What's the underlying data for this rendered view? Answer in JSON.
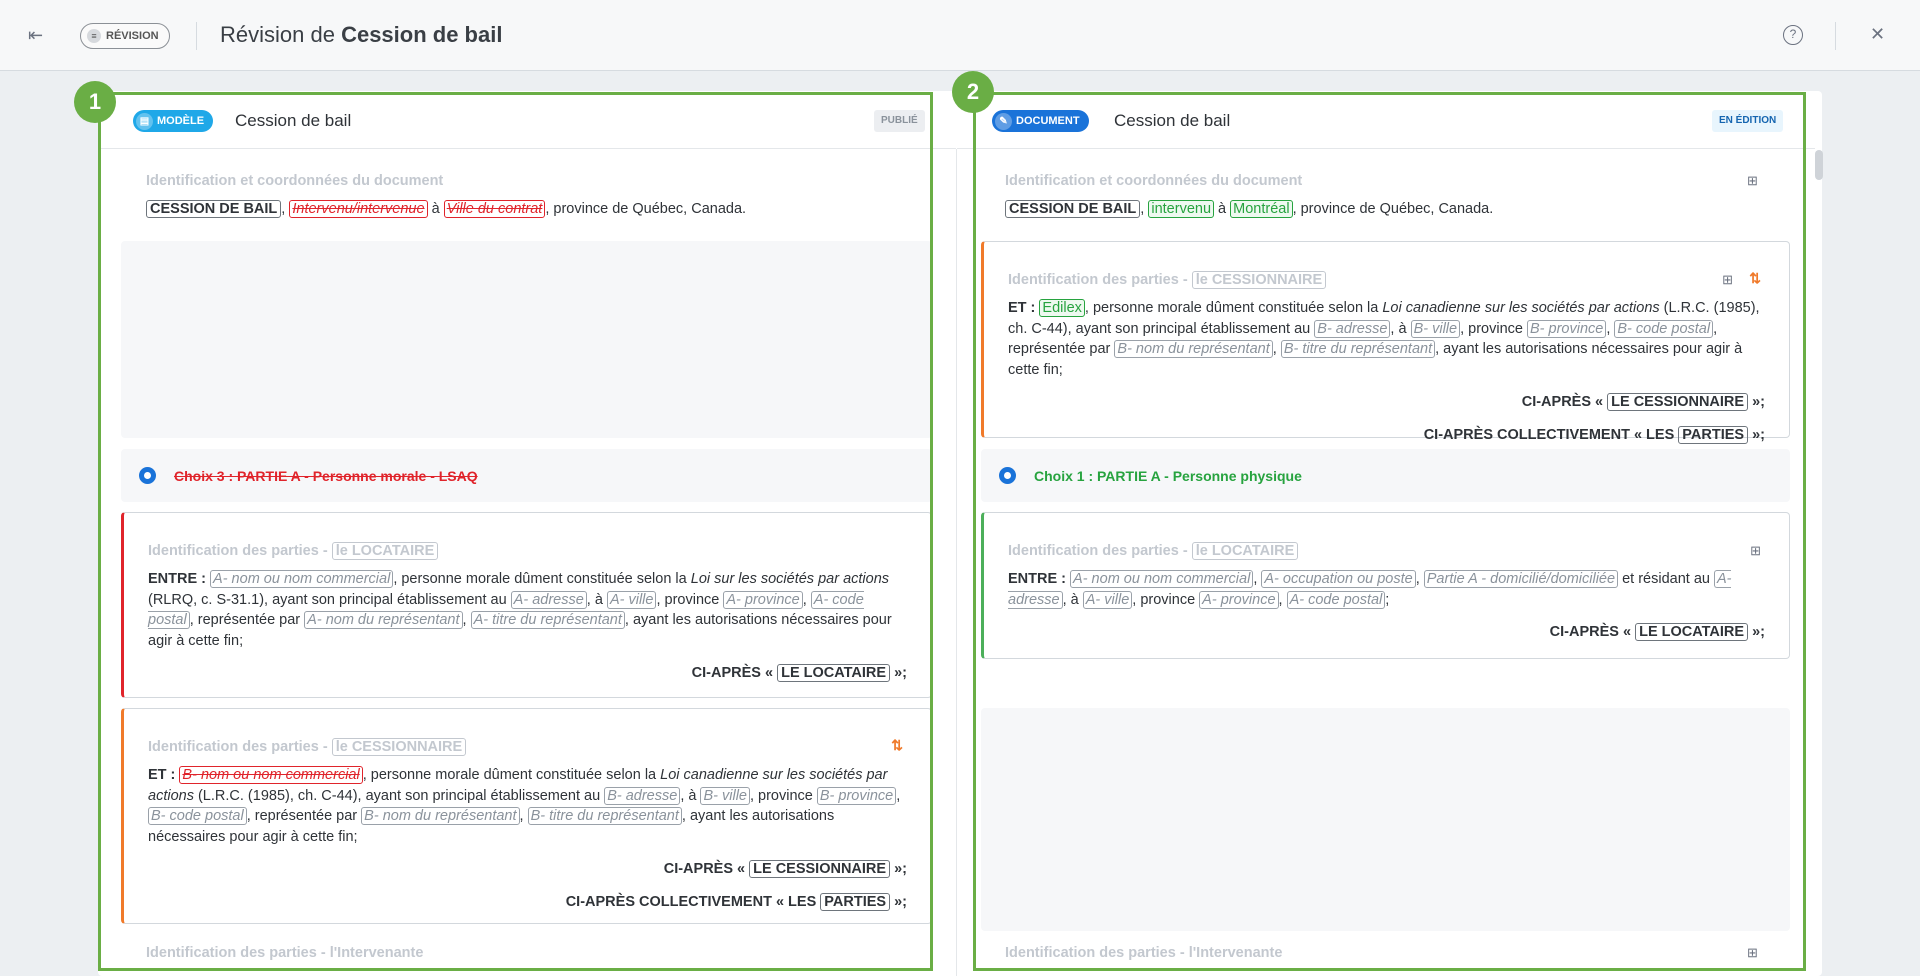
{
  "header": {
    "badge": "RÉVISION",
    "title_prefix": "Révision de ",
    "title_bold": "Cession de bail",
    "back_icon": "collapse-left-icon",
    "help_icon": "help-circle-icon",
    "close_icon": "close-icon"
  },
  "left": {
    "number": "1",
    "type": "MODÈLE",
    "title": "Cession de bail",
    "status": "PUBLIÉ",
    "s1": {
      "heading": "Identification et coordonnées du document",
      "p": [
        {
          "k": "t",
          "t": "CESSION DE BAIL"
        },
        {
          "k": "x",
          "t": ", "
        },
        {
          "k": "del",
          "t": "Intervenu/intervenue"
        },
        {
          "k": "x",
          "t": " à "
        },
        {
          "k": "del",
          "t": "Ville du contrat"
        },
        {
          "k": "x",
          "t": ", province de Québec, Canada."
        }
      ]
    },
    "choice": "Choix 3 : PARTIE A - Personne morale - LSAQ",
    "s2": {
      "heading": "Identification des parties - ",
      "heading_tag": "le LOCATAIRE",
      "p": [
        {
          "k": "b",
          "t": "ENTRE : "
        },
        {
          "k": "f",
          "t": "A- nom ou nom commercial"
        },
        {
          "k": "x",
          "t": ", personne morale dûment constituée selon la "
        },
        {
          "k": "i",
          "t": "Loi sur les sociétés par actions"
        },
        {
          "k": "x",
          "t": " (RLRQ, c. S-31.1), ayant son principal établissement au "
        },
        {
          "k": "f",
          "t": "A- adresse"
        },
        {
          "k": "x",
          "t": ", à "
        },
        {
          "k": "f",
          "t": "A- ville"
        },
        {
          "k": "x",
          "t": ", province "
        },
        {
          "k": "f",
          "t": "A- province"
        },
        {
          "k": "x",
          "t": ", "
        },
        {
          "k": "f",
          "t": "A- code postal"
        },
        {
          "k": "x",
          "t": ", représentée par "
        },
        {
          "k": "f",
          "t": "A- nom du représentant"
        },
        {
          "k": "x",
          "t": ", "
        },
        {
          "k": "f",
          "t": "A- titre du représentant"
        },
        {
          "k": "x",
          "t": ", ayant les autorisations nécessaires pour agir à cette fin;"
        }
      ],
      "lines": [
        [
          {
            "k": "b",
            "t": "CI-APRÈS « "
          },
          {
            "k": "t",
            "t": "LE LOCATAIRE"
          },
          {
            "k": "b",
            "t": " »;"
          }
        ]
      ]
    },
    "s3": {
      "heading": "Identification des parties - ",
      "heading_tag": "le CESSIONNAIRE",
      "p": [
        {
          "k": "b",
          "t": "ET : "
        },
        {
          "k": "del",
          "t": "B- nom ou nom commercial"
        },
        {
          "k": "x",
          "t": ", personne morale dûment constituée selon la "
        },
        {
          "k": "i",
          "t": "Loi canadienne sur les sociétés par actions"
        },
        {
          "k": "x",
          "t": " (L.R.C. (1985), ch. C-44), ayant son principal établissement au "
        },
        {
          "k": "f",
          "t": "B- adresse"
        },
        {
          "k": "x",
          "t": ", à "
        },
        {
          "k": "f",
          "t": "B- ville"
        },
        {
          "k": "x",
          "t": ", province "
        },
        {
          "k": "f",
          "t": "B- province"
        },
        {
          "k": "x",
          "t": ", "
        },
        {
          "k": "f",
          "t": "B- code postal"
        },
        {
          "k": "x",
          "t": ", représentée par "
        },
        {
          "k": "f",
          "t": "B- nom du représentant"
        },
        {
          "k": "x",
          "t": ", "
        },
        {
          "k": "f",
          "t": "B- titre du représentant"
        },
        {
          "k": "x",
          "t": ", ayant les autorisations nécessaires pour agir à cette fin;"
        }
      ],
      "lines": [
        [
          {
            "k": "b",
            "t": "CI-APRÈS « "
          },
          {
            "k": "t",
            "t": "LE CESSIONNAIRE"
          },
          {
            "k": "b",
            "t": " »;"
          }
        ],
        [
          {
            "k": "b",
            "t": "CI-APRÈS COLLECTIVEMENT « LES "
          },
          {
            "k": "t",
            "t": "PARTIES"
          },
          {
            "k": "b",
            "t": " »;"
          }
        ]
      ]
    },
    "s4": {
      "heading": "Identification des parties - l'Intervenante"
    }
  },
  "right": {
    "number": "2",
    "type": "DOCUMENT",
    "title": "Cession de bail",
    "status": "EN ÉDITION",
    "s1": {
      "heading": "Identification et coordonnées du document",
      "p": [
        {
          "k": "t",
          "t": "CESSION DE BAIL"
        },
        {
          "k": "x",
          "t": ", "
        },
        {
          "k": "add",
          "t": "intervenu"
        },
        {
          "k": "x",
          "t": " à "
        },
        {
          "k": "add",
          "t": "Montréal"
        },
        {
          "k": "x",
          "t": ", province de Québec, Canada."
        }
      ]
    },
    "s2": {
      "heading": "Identification des parties - ",
      "heading_tag": "le CESSIONNAIRE",
      "p": [
        {
          "k": "b",
          "t": "ET : "
        },
        {
          "k": "add",
          "t": "Edilex"
        },
        {
          "k": "x",
          "t": ", personne morale dûment constituée selon la "
        },
        {
          "k": "i",
          "t": "Loi canadienne sur les sociétés par actions"
        },
        {
          "k": "x",
          "t": " (L.R.C. (1985), ch. C-44), ayant son principal établissement au "
        },
        {
          "k": "f",
          "t": "B- adresse"
        },
        {
          "k": "x",
          "t": ", à "
        },
        {
          "k": "f",
          "t": "B- ville"
        },
        {
          "k": "x",
          "t": ", province "
        },
        {
          "k": "f",
          "t": "B- province"
        },
        {
          "k": "x",
          "t": ", "
        },
        {
          "k": "f",
          "t": "B- code postal"
        },
        {
          "k": "x",
          "t": ", représentée par "
        },
        {
          "k": "f",
          "t": "B- nom du représentant"
        },
        {
          "k": "x",
          "t": ", "
        },
        {
          "k": "f",
          "t": "B- titre du représentant"
        },
        {
          "k": "x",
          "t": ", ayant les autorisations nécessaires pour agir à cette fin;"
        }
      ],
      "lines": [
        [
          {
            "k": "b",
            "t": "CI-APRÈS « "
          },
          {
            "k": "t",
            "t": "LE CESSIONNAIRE"
          },
          {
            "k": "b",
            "t": " »;"
          }
        ],
        [
          {
            "k": "b",
            "t": "CI-APRÈS COLLECTIVEMENT « LES "
          },
          {
            "k": "t",
            "t": "PARTIES"
          },
          {
            "k": "b",
            "t": " »;"
          }
        ]
      ]
    },
    "choice": "Choix 1 : PARTIE A - Personne physique",
    "s3": {
      "heading": "Identification des parties - ",
      "heading_tag": "le LOCATAIRE",
      "p": [
        {
          "k": "b",
          "t": "ENTRE : "
        },
        {
          "k": "f",
          "t": "A- nom ou nom commercial"
        },
        {
          "k": "x",
          "t": ", "
        },
        {
          "k": "f",
          "t": "A- occupation ou poste"
        },
        {
          "k": "x",
          "t": ", "
        },
        {
          "k": "f",
          "t": "Partie A - domicilié/domiciliée"
        },
        {
          "k": "x",
          "t": " et résidant au "
        },
        {
          "k": "f",
          "t": "A- adresse"
        },
        {
          "k": "x",
          "t": ", à "
        },
        {
          "k": "f",
          "t": "A- ville"
        },
        {
          "k": "x",
          "t": ", province "
        },
        {
          "k": "f",
          "t": "A- province"
        },
        {
          "k": "x",
          "t": ", "
        },
        {
          "k": "f",
          "t": "A- code postal"
        },
        {
          "k": "x",
          "t": ";"
        }
      ],
      "lines": [
        [
          {
            "k": "b",
            "t": "CI-APRÈS « "
          },
          {
            "k": "t",
            "t": "LE LOCATAIRE"
          },
          {
            "k": "b",
            "t": " »;"
          }
        ]
      ]
    },
    "s4": {
      "heading": "Identification des parties - l'Intervenante"
    }
  },
  "colors": {
    "accent_green": "#6aae45",
    "deleted": "#e0242b",
    "added": "#27a33f",
    "modele": "#1fa8e8",
    "document": "#1a73d9",
    "moved": "#f07a2a"
  }
}
